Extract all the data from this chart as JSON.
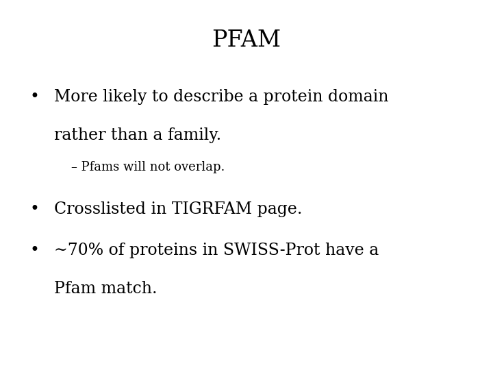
{
  "title": "PFAM",
  "background_color": "#ffffff",
  "text_color": "#000000",
  "title_fontsize": 24,
  "bullet_fontsize": 17,
  "sub_bullet_fontsize": 13,
  "bullet1_line1": "More likely to describe a protein domain",
  "bullet1_line2": "rather than a family.",
  "sub_bullet1": "– Pfams will not overlap.",
  "bullet2": "Crosslisted in TIGRFAM page.",
  "bullet3_line1": "∼70% of proteins in SWISS-Prot have a",
  "bullet3_line2": "Pfam match.",
  "font_family": "serif"
}
